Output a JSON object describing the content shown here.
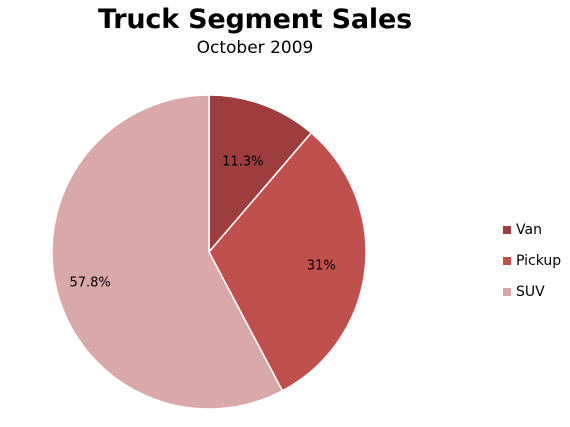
{
  "chart_data": {
    "type": "pie",
    "title": "Truck Segment Sales",
    "subtitle": "October 2009",
    "categories": [
      "Van",
      "Pickup",
      "SUV"
    ],
    "values": [
      11.3,
      31,
      57.8
    ],
    "labels": [
      "11.3%",
      "31%",
      "57.8%"
    ],
    "colors": [
      "#9e3d3d",
      "#c0504d",
      "#d9a8a8"
    ],
    "legend_position": "right"
  }
}
